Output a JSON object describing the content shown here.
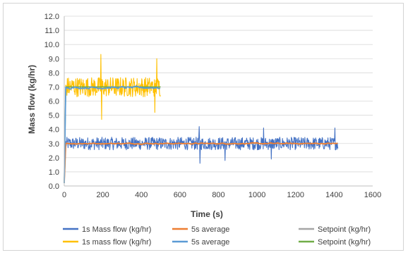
{
  "chart_data": {
    "type": "line",
    "title": "",
    "xlabel": "Time (s)",
    "ylabel": "Mass flow (kg/hr)",
    "xlim": [
      0,
      1600
    ],
    "ylim": [
      0,
      12
    ],
    "x_ticks": [
      0,
      200,
      400,
      600,
      800,
      1000,
      1200,
      1400,
      1600
    ],
    "y_ticks": [
      "0.0",
      "1.0",
      "2.0",
      "3.0",
      "4.0",
      "5.0",
      "6.0",
      "7.0",
      "8.0",
      "9.0",
      "10.0",
      "11.0",
      "12.0"
    ],
    "grid": "horizontal",
    "legend_position": "bottom",
    "series": [
      {
        "name": "1s Mass flow (kg/hr)",
        "color": "#4472C4",
        "kind": "noisy",
        "x_range": [
          0,
          1420
        ],
        "mean": 3.0,
        "spread": 0.45,
        "spikes": [
          {
            "x": 705,
            "y": 1.6
          },
          {
            "x": 700,
            "y": 4.2
          },
          {
            "x": 835,
            "y": 1.8
          },
          {
            "x": 1075,
            "y": 1.9
          },
          {
            "x": 1035,
            "y": 4.1
          },
          {
            "x": 1405,
            "y": 4.1
          }
        ]
      },
      {
        "name": "5s average",
        "color": "#ED7D31",
        "kind": "smooth",
        "x_range": [
          0,
          1420
        ],
        "mean": 3.0,
        "spread": 0.08
      },
      {
        "name": "Setpoint (kg/hr)",
        "color": "#A5A5A5",
        "kind": "constant",
        "x_range": [
          0,
          1420
        ],
        "value": 3.0
      },
      {
        "name": "1s mass flow (kg/hr)",
        "color": "#FFC000",
        "kind": "noisy",
        "x_range": [
          0,
          500
        ],
        "mean": 7.0,
        "spread": 0.7,
        "spikes": [
          {
            "x": 190,
            "y": 9.3
          },
          {
            "x": 195,
            "y": 4.7
          },
          {
            "x": 480,
            "y": 9.0
          },
          {
            "x": 470,
            "y": 5.2
          }
        ]
      },
      {
        "name": "5s average",
        "color": "#5B9BD5",
        "kind": "smooth",
        "x_range": [
          0,
          500
        ],
        "mean": 6.95,
        "spread": 0.15
      },
      {
        "name": "Setpoint (kg/hr)",
        "color": "#70AD47",
        "kind": "constant",
        "x_range": [
          0,
          500
        ],
        "value": 7.0
      }
    ]
  }
}
